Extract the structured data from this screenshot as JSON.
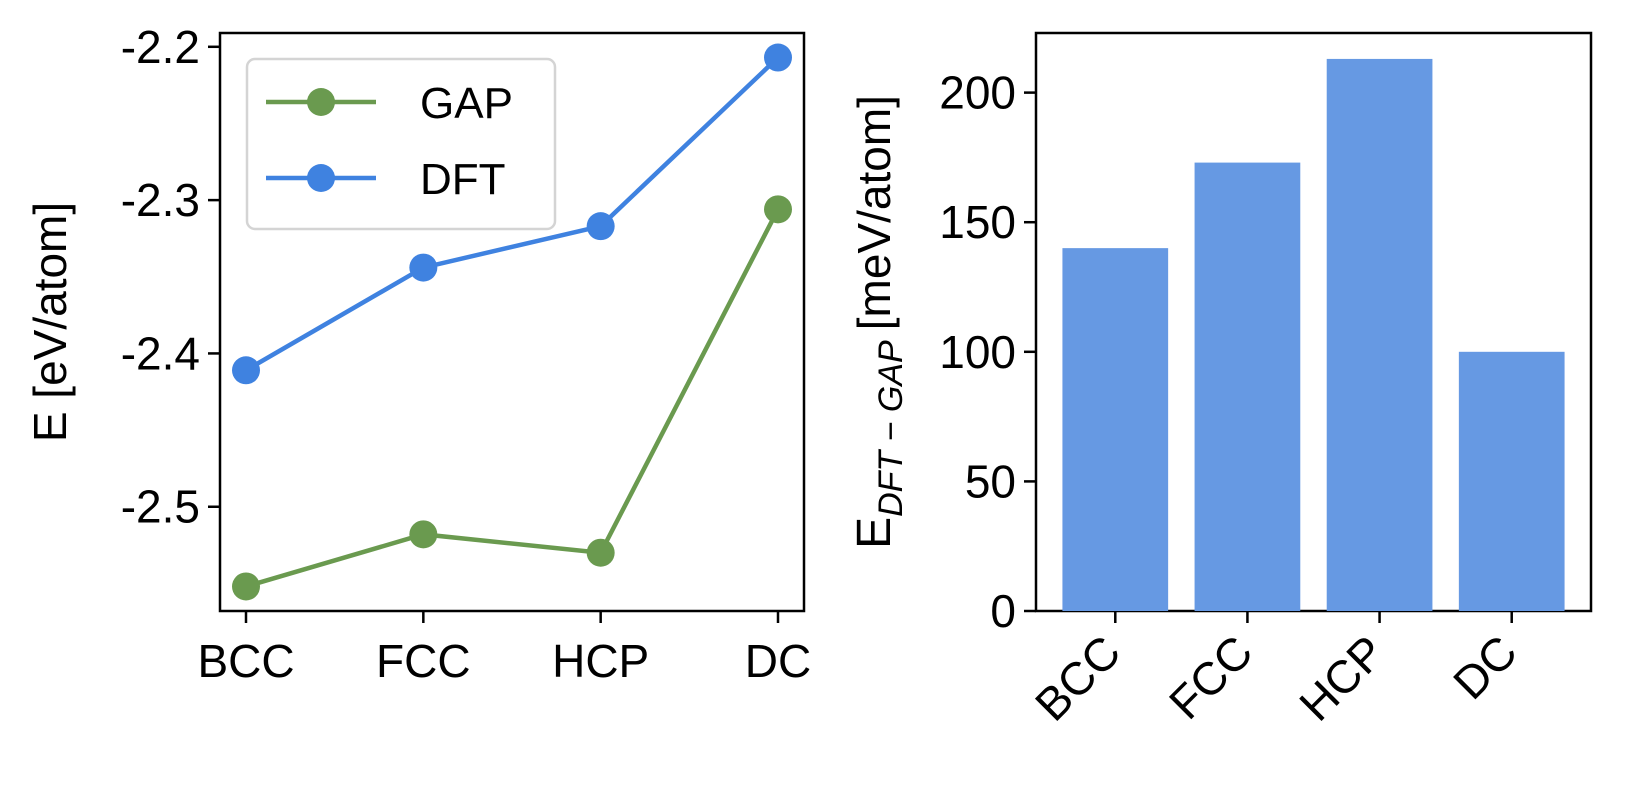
{
  "chart_data": [
    {
      "type": "line",
      "categories": [
        "BCC",
        "FCC",
        "HCP",
        "DC"
      ],
      "series": [
        {
          "name": "GAP",
          "color": "#6a9a4f",
          "values": [
            -2.552,
            -2.518,
            -2.53,
            -2.306
          ]
        },
        {
          "name": "DFT",
          "color": "#3f82e0",
          "values": [
            -2.411,
            -2.344,
            -2.317,
            -2.207
          ]
        }
      ],
      "xlabel": "",
      "ylabel": "E [eV/atom]",
      "ylim": [
        -2.568,
        -2.191
      ],
      "yticks": [
        -2.5,
        -2.4,
        -2.3,
        -2.2
      ],
      "ytick_labels": [
        "-2.5",
        "-2.4",
        "-2.3",
        "-2.2"
      ],
      "legend": {
        "position": "top-left",
        "labels": [
          "GAP",
          "DFT"
        ]
      },
      "grid": false
    },
    {
      "type": "bar",
      "categories": [
        "BCC",
        "FCC",
        "HCP",
        "DC"
      ],
      "values": [
        140,
        173,
        213,
        100
      ],
      "bar_color": "#6699e3",
      "xlabel": "",
      "ylabel_main": "E",
      "ylabel_sub": "DFT − GAP",
      "ylabel_unit": "[meV/atom]",
      "ylim": [
        0,
        223
      ],
      "yticks": [
        0,
        50,
        100,
        150,
        200
      ],
      "ytick_labels": [
        "0",
        "50",
        "100",
        "150",
        "200"
      ],
      "xtick_rotation": "45 degrees",
      "grid": false
    }
  ]
}
